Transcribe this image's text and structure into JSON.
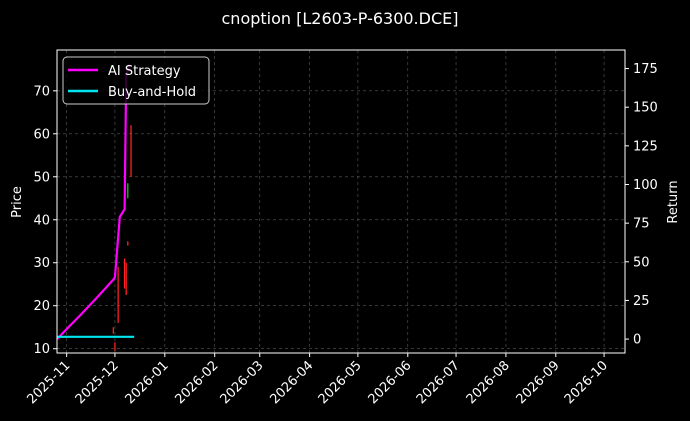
{
  "chart_data": {
    "type": "line",
    "title": "cnoption [L2603-P-6300.DCE]",
    "ylabel_left": "Price",
    "ylabel_right": "Return",
    "x_range": [
      "2025-10-26",
      "2026-10-14"
    ],
    "y_left_range": [
      9,
      79.5
    ],
    "y_right_range": [
      -9,
      187
    ],
    "x_ticks": [
      "2025-11",
      "2025-12",
      "2026-01",
      "2026-02",
      "2026-03",
      "2026-04",
      "2026-05",
      "2026-06",
      "2026-07",
      "2026-08",
      "2026-09",
      "2026-10"
    ],
    "y_left_ticks": [
      10,
      20,
      30,
      40,
      50,
      60,
      70
    ],
    "y_right_ticks": [
      0,
      25,
      50,
      75,
      100,
      125,
      150,
      175
    ],
    "grid": true,
    "legend_position": "top-left",
    "series": [
      {
        "name": "AI Strategy",
        "axis": "right",
        "color": "#ff00ff",
        "points": [
          [
            "2025-10-26",
            0
          ],
          [
            "2025-11-01",
            6.5
          ],
          [
            "2025-11-10",
            16
          ],
          [
            "2025-11-20",
            27
          ],
          [
            "2025-11-30",
            38.5
          ],
          [
            "2025-12-01",
            40
          ],
          [
            "2025-12-04",
            79
          ],
          [
            "2025-12-07",
            84
          ],
          [
            "2025-12-08",
            170
          ],
          [
            "2025-12-10",
            178
          ]
        ]
      },
      {
        "name": "Buy-and-Hold",
        "axis": "right",
        "color": "#00e5ee",
        "points": [
          [
            "2025-10-26",
            1.5
          ],
          [
            "2025-12-13",
            1.5
          ]
        ]
      }
    ],
    "price_bars": [
      {
        "x": "2025-11-30",
        "low": 13.5,
        "high": 15,
        "color": "#ff2020"
      },
      {
        "x": "2025-12-01",
        "low": 9.5,
        "high": 11.5,
        "color": "#ff2020"
      },
      {
        "x": "2025-12-03",
        "low": 16,
        "high": 29,
        "color": "#ff2020"
      },
      {
        "x": "2025-12-07",
        "low": 24,
        "high": 31,
        "color": "#ff2020"
      },
      {
        "x": "2025-12-08",
        "low": 22.5,
        "high": 30,
        "color": "#ff2020"
      },
      {
        "x": "2025-12-09",
        "low": 34,
        "high": 35,
        "color": "#ff2020"
      },
      {
        "x": "2025-12-09",
        "low": 45,
        "high": 48.5,
        "color": "#1fbf1f"
      },
      {
        "x": "2025-12-11",
        "low": 50,
        "high": 62,
        "color": "#ff2020"
      }
    ]
  }
}
